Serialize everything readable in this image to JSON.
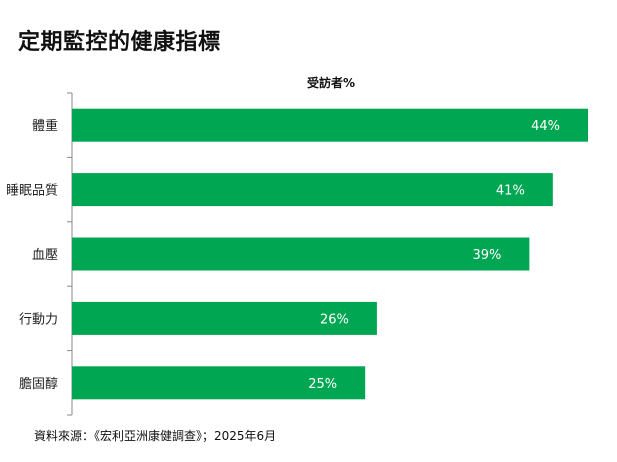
{
  "title": "定期監控的健康指標",
  "source": "資料來源：《宏利亞洲康健調查》；2025年6月",
  "chart_data": {
    "type": "bar",
    "orientation": "horizontal",
    "unit_label": "受訪者%",
    "categories": [
      "體重",
      "睡眠品質",
      "血壓",
      "行動力",
      "膽固醇"
    ],
    "values": [
      44,
      41,
      39,
      26,
      25
    ],
    "value_labels": [
      "44%",
      "41%",
      "39%",
      "26%",
      "25%"
    ],
    "bar_color": "#00A651",
    "xlim": [
      0,
      44
    ],
    "grid": false,
    "legend": "none"
  }
}
